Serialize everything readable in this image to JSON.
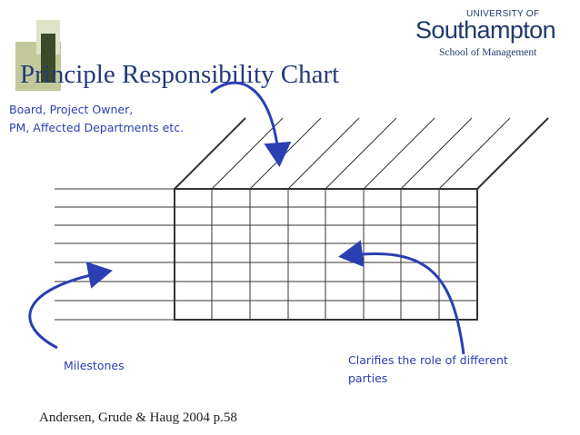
{
  "slide": {
    "title": "Principle Responsibility Chart",
    "logo": {
      "university_of": "UNIVERSITY OF",
      "name": "Southampton",
      "school": "School of Management"
    },
    "annotations": {
      "board": [
        "Board, Project Owner,",
        "PM, Affected Departments etc."
      ],
      "milestones": "Milestones",
      "clarifies": [
        "Clarifies the role of different",
        "parties"
      ]
    },
    "citation": "Andersen, Grude & Haug 2004 p.58"
  },
  "colors": {
    "title": "#233a7a",
    "annotation": "#2b3fb3",
    "grid": "#333333",
    "deco_olive": "#b7bd8c",
    "deco_dark": "#3c4a2a"
  }
}
